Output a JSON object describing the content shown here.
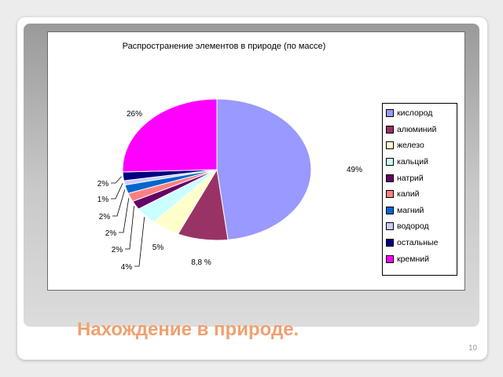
{
  "slide": {
    "heading": "Нахождение в природе.",
    "page_number": "10"
  },
  "chart_data": {
    "type": "pie",
    "title": "Распространение элементов в природе (по массе)",
    "legend_position": "right",
    "series": [
      {
        "name": "кислород",
        "value": 49,
        "label": "49%",
        "color": "#9999ff"
      },
      {
        "name": "алюминий",
        "value": 8.8,
        "label": "8,8 %",
        "color": "#993366"
      },
      {
        "name": "железо",
        "value": 5,
        "label": "5%",
        "color": "#ffffcc"
      },
      {
        "name": "кальций",
        "value": 4,
        "label": "4%",
        "color": "#ccffff"
      },
      {
        "name": "натрий",
        "value": 2,
        "label": "2%",
        "color": "#660066"
      },
      {
        "name": "калий",
        "value": 2,
        "label": "2%",
        "color": "#ff8080"
      },
      {
        "name": "магний",
        "value": 2,
        "label": "2%",
        "color": "#0066cc"
      },
      {
        "name": "водород",
        "value": 1,
        "label": "1%",
        "color": "#ccccff"
      },
      {
        "name": "остальные",
        "value": 2,
        "label": "2%",
        "color": "#000080"
      },
      {
        "name": "кремний",
        "value": 26,
        "label": "26%",
        "color": "#ff00ff"
      }
    ]
  }
}
